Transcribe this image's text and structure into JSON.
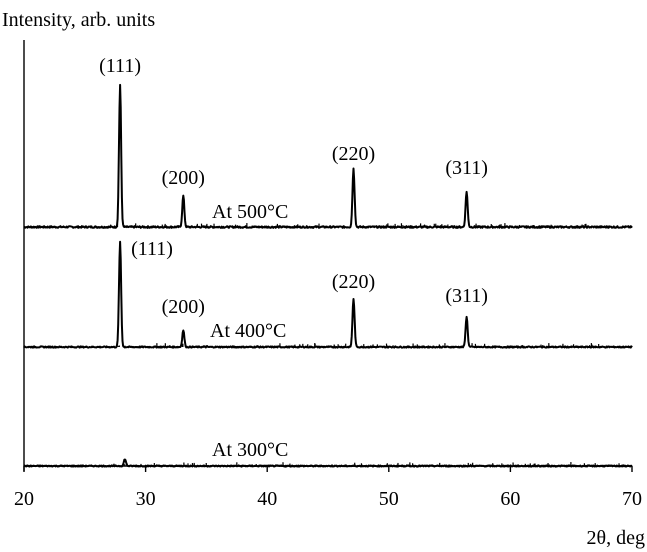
{
  "chart_data": {
    "type": "line",
    "ylabel": "Intensity, arb. units",
    "xlabel": "2θ, deg",
    "xlim": [
      20,
      70
    ],
    "xticks": [
      20,
      30,
      40,
      50,
      60,
      70
    ],
    "y_axis_values_shown": false,
    "grid": false,
    "legend": "none",
    "series": [
      {
        "name": "At 500°C",
        "peaks": [
          {
            "hkl": "(111)",
            "x": 27.9,
            "height": 1.0
          },
          {
            "hkl": "(200)",
            "x": 33.1,
            "height": 0.22
          },
          {
            "hkl": "(220)",
            "x": 47.1,
            "height": 0.41
          },
          {
            "hkl": "(311)",
            "x": 56.4,
            "height": 0.25
          }
        ]
      },
      {
        "name": "At 400°C",
        "peaks": [
          {
            "hkl": "(111)",
            "x": 27.9,
            "height": 1.0
          },
          {
            "hkl": "(200)",
            "x": 33.1,
            "height": 0.16
          },
          {
            "hkl": "(220)",
            "x": 47.1,
            "height": 0.46
          },
          {
            "hkl": "(311)",
            "x": 56.4,
            "height": 0.29
          }
        ]
      },
      {
        "name": "At 300°C",
        "peaks": [
          {
            "hkl": "",
            "x": 28.3,
            "height": 0.07
          }
        ]
      }
    ],
    "colors": {
      "line": "#000000",
      "axis": "#000000",
      "background": "#ffffff"
    }
  }
}
